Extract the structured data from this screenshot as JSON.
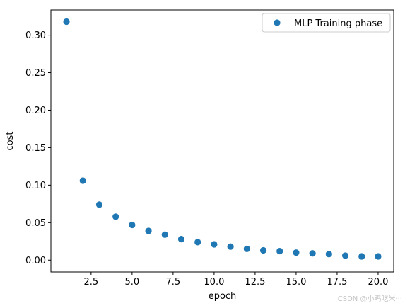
{
  "chart_data": {
    "type": "scatter",
    "title": "",
    "xlabel": "epoch",
    "ylabel": "cost",
    "xlim": [
      0.05,
      20.95
    ],
    "ylim": [
      -0.0158,
      0.3336
    ],
    "xticks": [
      "2.5",
      "5.0",
      "7.5",
      "10.0",
      "12.5",
      "15.0",
      "17.5",
      "20.0"
    ],
    "xtick_values": [
      2.5,
      5.0,
      7.5,
      10.0,
      12.5,
      15.0,
      17.5,
      20.0
    ],
    "yticks": [
      "0.00",
      "0.05",
      "0.10",
      "0.15",
      "0.20",
      "0.25",
      "0.30"
    ],
    "ytick_values": [
      0.0,
      0.05,
      0.1,
      0.15,
      0.2,
      0.25,
      0.3
    ],
    "grid": false,
    "legend_position": "top-right",
    "series": [
      {
        "name": "MLP Training phase",
        "color": "#1f77b4",
        "marker": "circle",
        "x": [
          1,
          2,
          3,
          4,
          5,
          6,
          7,
          8,
          9,
          10,
          11,
          12,
          13,
          14,
          15,
          16,
          17,
          18,
          19,
          20
        ],
        "y": [
          0.318,
          0.106,
          0.074,
          0.058,
          0.047,
          0.039,
          0.034,
          0.028,
          0.024,
          0.021,
          0.018,
          0.015,
          0.013,
          0.012,
          0.01,
          0.009,
          0.008,
          0.006,
          0.005,
          0.005
        ]
      }
    ]
  },
  "watermark": "CSDN @小鸡吃米···"
}
